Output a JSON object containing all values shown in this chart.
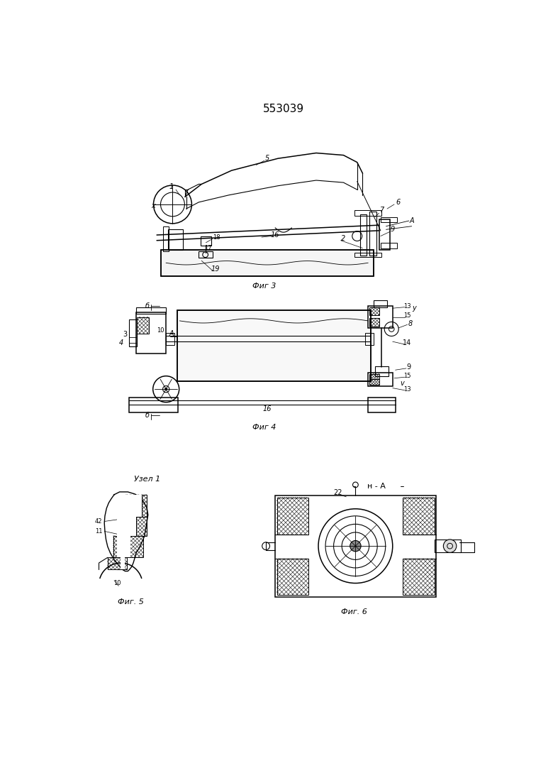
{
  "title": "553039",
  "background_color": "#ffffff",
  "fig3_label": "Фиг 3",
  "fig4_label": "Фиг 4",
  "fig5_label": "Фиг. 5",
  "fig6_label": "Фиг. 6",
  "uzell_label": "Узел 1",
  "n_a_label": "н - А"
}
